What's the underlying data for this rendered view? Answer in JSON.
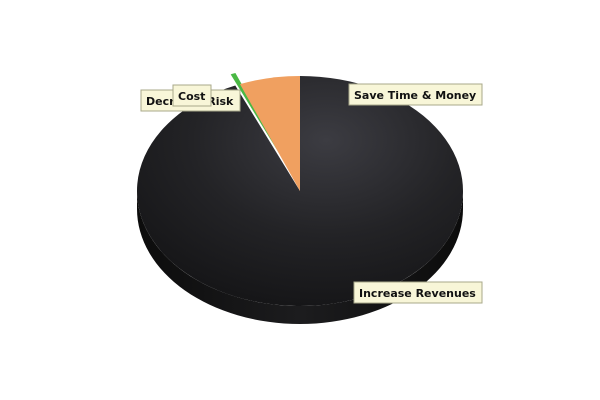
{
  "chart_data": {
    "type": "pie",
    "variant": "3d",
    "start_angle_deg": -90,
    "direction": "clockwise",
    "slices": [
      {
        "label": "Save Time & Money",
        "value": 93.5,
        "color": "#2a2a2e"
      },
      {
        "label": "Increase Revenues",
        "value": 0.0,
        "color": "#2a2a2e"
      },
      {
        "label": "Decrease Risk",
        "value": 0.5,
        "color": "#4ab844"
      },
      {
        "label": "Cost",
        "value": 6.0,
        "color": "#f0a060"
      }
    ],
    "legend": "none"
  }
}
